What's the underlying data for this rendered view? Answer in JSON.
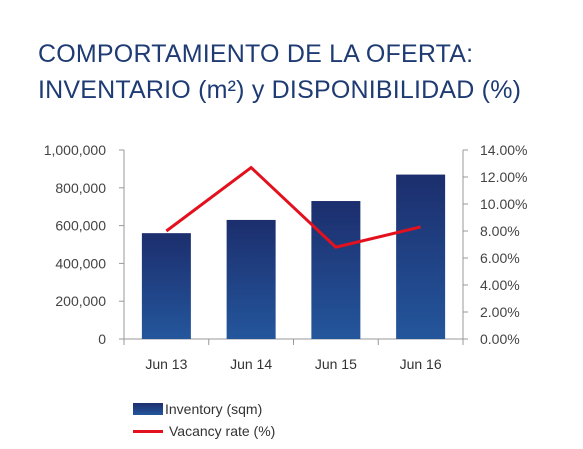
{
  "title": {
    "line1": "COMPORTAMIENTO DE LA OFERTA:",
    "line2": "INVENTARIO (m²) y DISPONIBILIDAD (%)"
  },
  "colors": {
    "title": "#1f3b73",
    "bar_top": "#1c2e6d",
    "bar_bottom": "#24569c",
    "line": "#e3111e",
    "axis": "#999999"
  },
  "chart_data": {
    "type": "bar",
    "categories": [
      "Jun 13",
      "Jun 14",
      "Jun 15",
      "Jun 16"
    ],
    "series": [
      {
        "name": "Inventory (sqm)",
        "type": "bar",
        "axis": "left",
        "values": [
          560000,
          630000,
          730000,
          870000
        ]
      },
      {
        "name": "Vacancy rate (%)",
        "type": "line",
        "axis": "right",
        "values": [
          8.0,
          12.7,
          6.8,
          8.3
        ]
      }
    ],
    "y_left": {
      "min": 0,
      "max": 1000000,
      "ticks": [
        "0",
        "200,000",
        "400,000",
        "600,000",
        "800,000",
        "1,000,000"
      ]
    },
    "y_right": {
      "min": 0,
      "max": 14,
      "ticks": [
        "0.00%",
        "2.00%",
        "4.00%",
        "6.00%",
        "8.00%",
        "10.00%",
        "12.00%",
        "14.00%"
      ]
    },
    "grid": false,
    "legend_position": "bottom-left"
  },
  "legend": [
    {
      "label": "Inventory (sqm)",
      "kind": "bar"
    },
    {
      "label": "Vacancy rate (%)",
      "kind": "line"
    }
  ]
}
